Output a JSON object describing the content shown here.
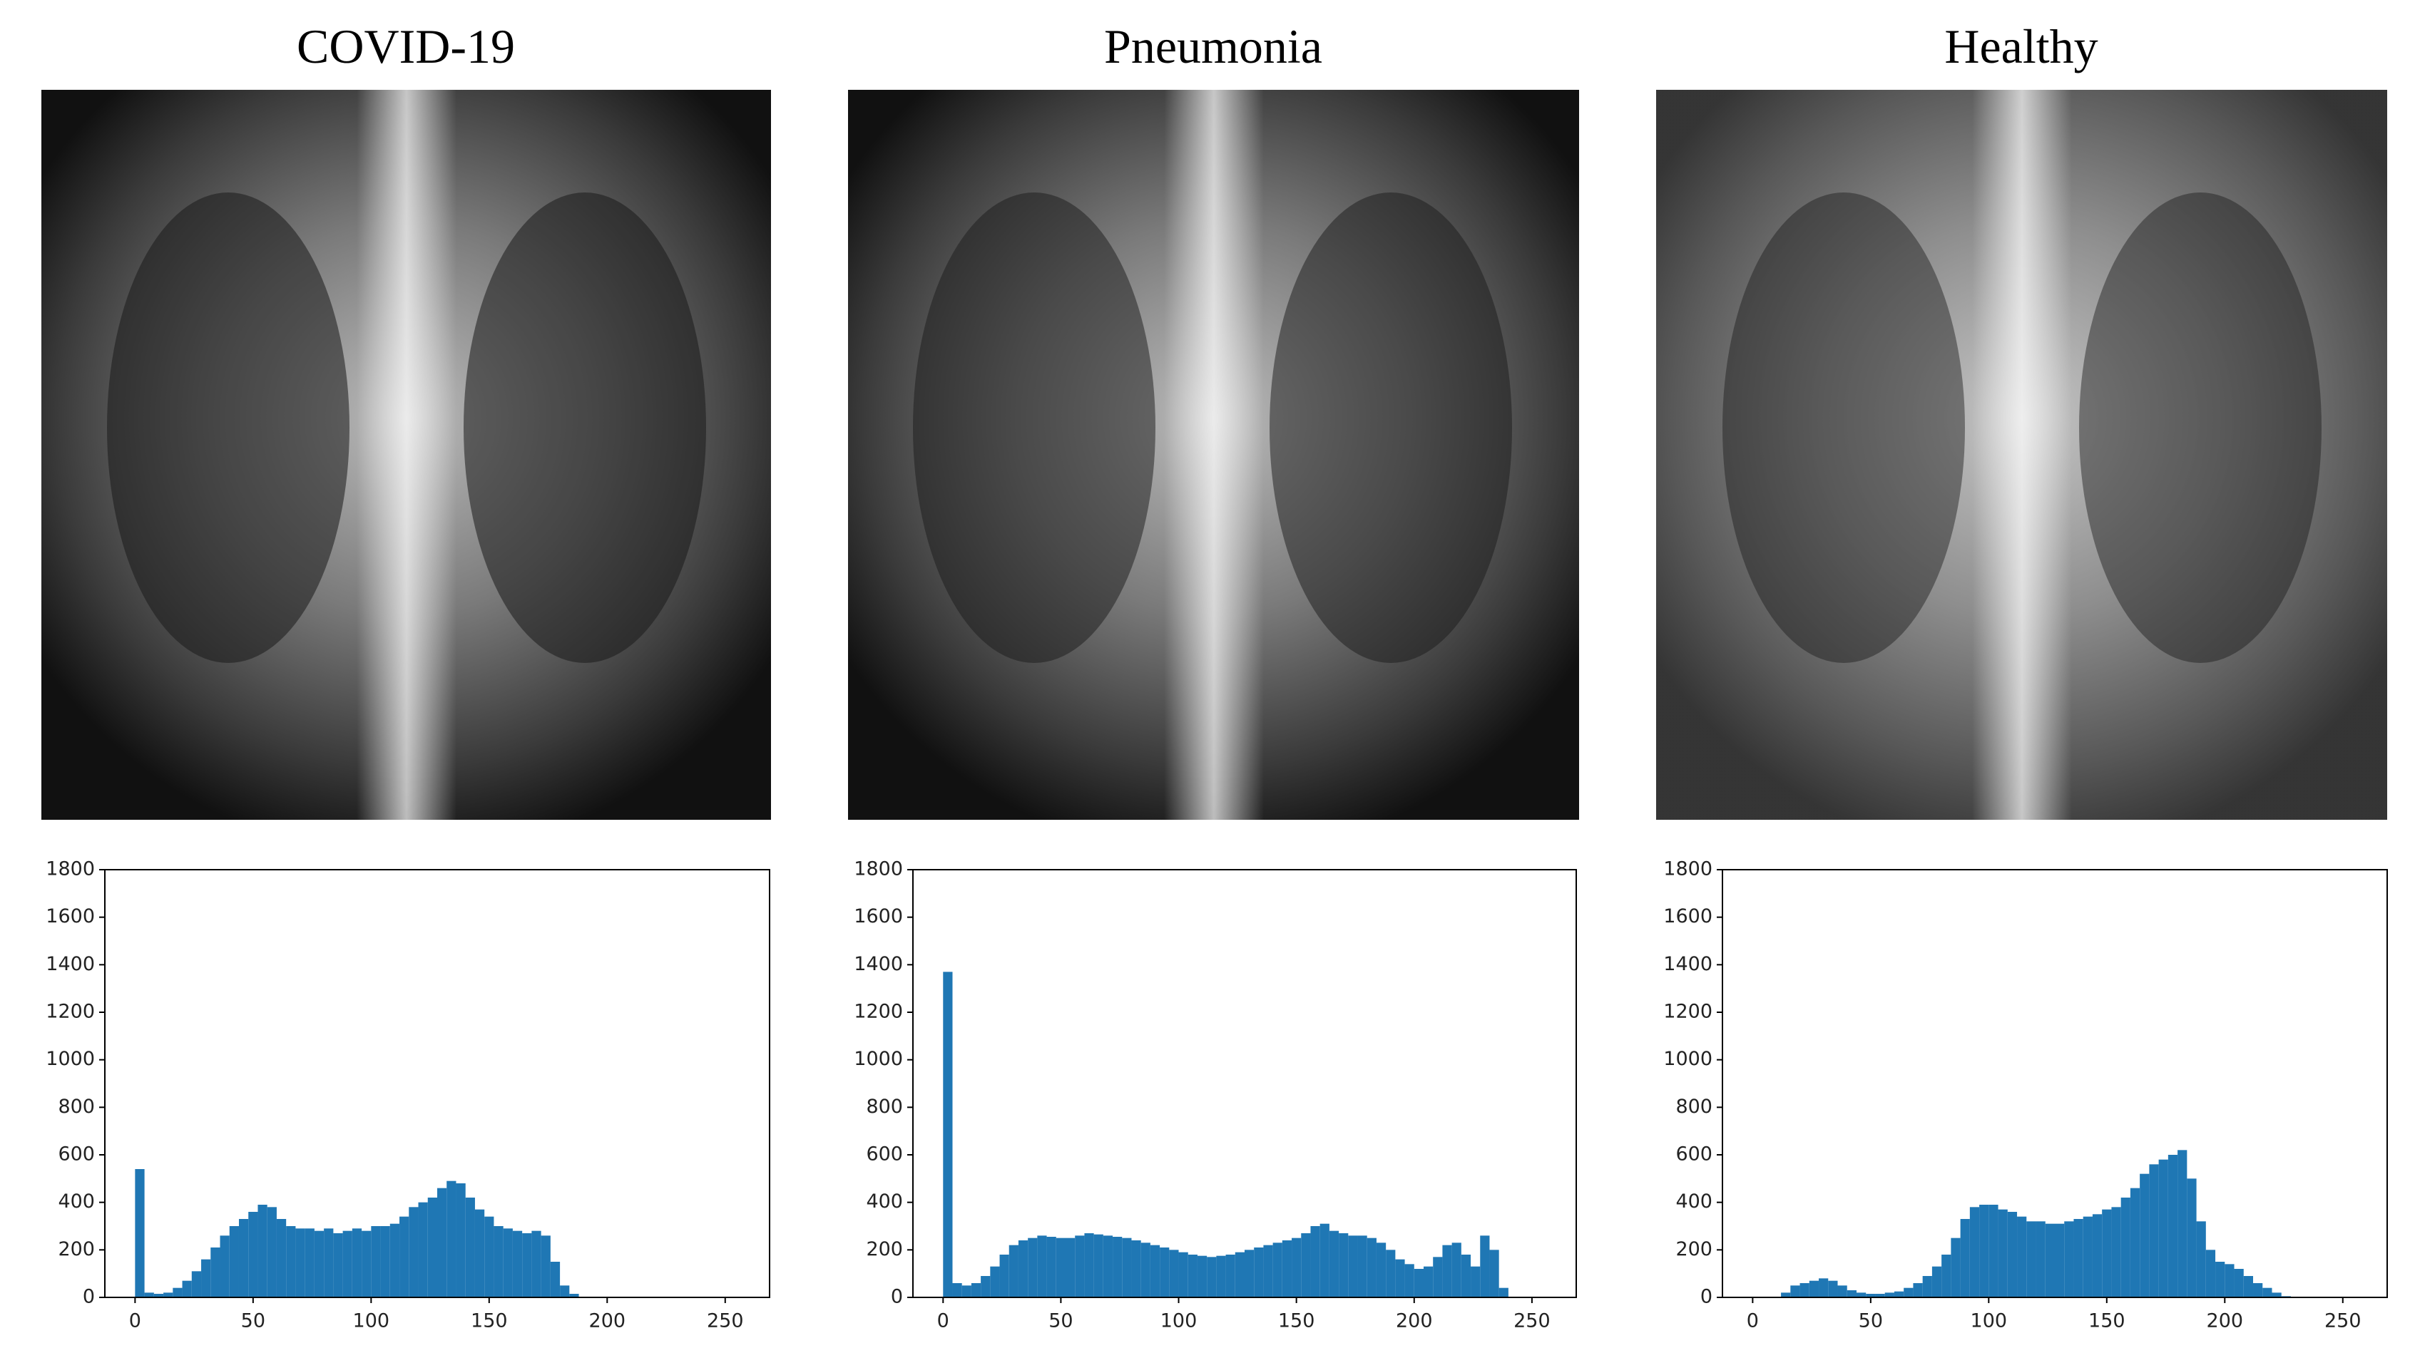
{
  "chart_data": [
    {
      "type": "histogram",
      "title": "COVID-19",
      "color": "#1f77b4",
      "bins": [
        0,
        4,
        8,
        12,
        16,
        20,
        24,
        28,
        32,
        36,
        40,
        44,
        48,
        52,
        56,
        60,
        64,
        68,
        72,
        76,
        80,
        84,
        88,
        92,
        96,
        100,
        104,
        108,
        112,
        116,
        120,
        124,
        128,
        132,
        136,
        140,
        144,
        148,
        152,
        156,
        160,
        164,
        168,
        172,
        176,
        180,
        184,
        188,
        192,
        196,
        200,
        204,
        208,
        212,
        216,
        220,
        224,
        228,
        232,
        236,
        240,
        244,
        248,
        252,
        256
      ],
      "values": [
        540,
        20,
        15,
        20,
        40,
        70,
        110,
        160,
        210,
        260,
        300,
        330,
        360,
        390,
        380,
        330,
        300,
        290,
        290,
        280,
        290,
        270,
        280,
        290,
        280,
        300,
        300,
        310,
        340,
        380,
        400,
        420,
        460,
        490,
        480,
        420,
        370,
        340,
        300,
        290,
        280,
        270,
        280,
        260,
        150,
        50,
        15,
        2,
        0,
        0,
        0,
        0,
        0,
        0,
        0,
        0,
        0,
        0,
        0,
        0,
        0,
        0,
        0,
        0
      ],
      "xlim": [
        -12.8,
        268.8
      ],
      "xticks": [
        0,
        50,
        100,
        150,
        200,
        250
      ],
      "ylim": [
        0,
        1800
      ],
      "yticks": [
        0,
        200,
        400,
        600,
        800,
        1000,
        1200,
        1400,
        1600,
        1800
      ]
    },
    {
      "type": "histogram",
      "title": "Pneumonia",
      "color": "#1f77b4",
      "bins": [
        0,
        4,
        8,
        12,
        16,
        20,
        24,
        28,
        32,
        36,
        40,
        44,
        48,
        52,
        56,
        60,
        64,
        68,
        72,
        76,
        80,
        84,
        88,
        92,
        96,
        100,
        104,
        108,
        112,
        116,
        120,
        124,
        128,
        132,
        136,
        140,
        144,
        148,
        152,
        156,
        160,
        164,
        168,
        172,
        176,
        180,
        184,
        188,
        192,
        196,
        200,
        204,
        208,
        212,
        216,
        220,
        224,
        228,
        232,
        236,
        240,
        244,
        248,
        252,
        256
      ],
      "values": [
        1370,
        60,
        50,
        60,
        90,
        130,
        180,
        220,
        240,
        250,
        260,
        255,
        250,
        250,
        260,
        270,
        265,
        260,
        255,
        250,
        240,
        230,
        220,
        210,
        200,
        190,
        180,
        175,
        170,
        175,
        180,
        190,
        200,
        210,
        220,
        230,
        240,
        250,
        270,
        300,
        310,
        280,
        270,
        260,
        260,
        250,
        230,
        200,
        160,
        140,
        120,
        130,
        170,
        220,
        230,
        180,
        130,
        260,
        200,
        40,
        0,
        0,
        0,
        0
      ],
      "xlim": [
        -12.8,
        268.8
      ],
      "xticks": [
        0,
        50,
        100,
        150,
        200,
        250
      ],
      "ylim": [
        0,
        1800
      ],
      "yticks": [
        0,
        200,
        400,
        600,
        800,
        1000,
        1200,
        1400,
        1600,
        1800
      ]
    },
    {
      "type": "histogram",
      "title": "Healthy",
      "color": "#1f77b4",
      "bins": [
        0,
        4,
        8,
        12,
        16,
        20,
        24,
        28,
        32,
        36,
        40,
        44,
        48,
        52,
        56,
        60,
        64,
        68,
        72,
        76,
        80,
        84,
        88,
        92,
        96,
        100,
        104,
        108,
        112,
        116,
        120,
        124,
        128,
        132,
        136,
        140,
        144,
        148,
        152,
        156,
        160,
        164,
        168,
        172,
        176,
        180,
        184,
        188,
        192,
        196,
        200,
        204,
        208,
        212,
        216,
        220,
        224,
        228,
        232,
        236,
        240,
        244,
        248,
        252,
        256
      ],
      "values": [
        0,
        0,
        0,
        20,
        50,
        60,
        70,
        80,
        70,
        50,
        30,
        20,
        15,
        15,
        20,
        25,
        40,
        60,
        90,
        130,
        180,
        250,
        330,
        380,
        390,
        390,
        370,
        360,
        340,
        320,
        320,
        310,
        310,
        320,
        330,
        340,
        350,
        370,
        380,
        420,
        460,
        520,
        560,
        580,
        600,
        620,
        500,
        320,
        200,
        150,
        140,
        120,
        90,
        60,
        40,
        20,
        5,
        0,
        0,
        0,
        0,
        0,
        0,
        0
      ],
      "xlim": [
        -12.8,
        268.8
      ],
      "xticks": [
        0,
        50,
        100,
        150,
        200,
        250
      ],
      "ylim": [
        0,
        1800
      ],
      "yticks": [
        0,
        200,
        400,
        600,
        800,
        1000,
        1200,
        1400,
        1600,
        1800
      ]
    }
  ]
}
